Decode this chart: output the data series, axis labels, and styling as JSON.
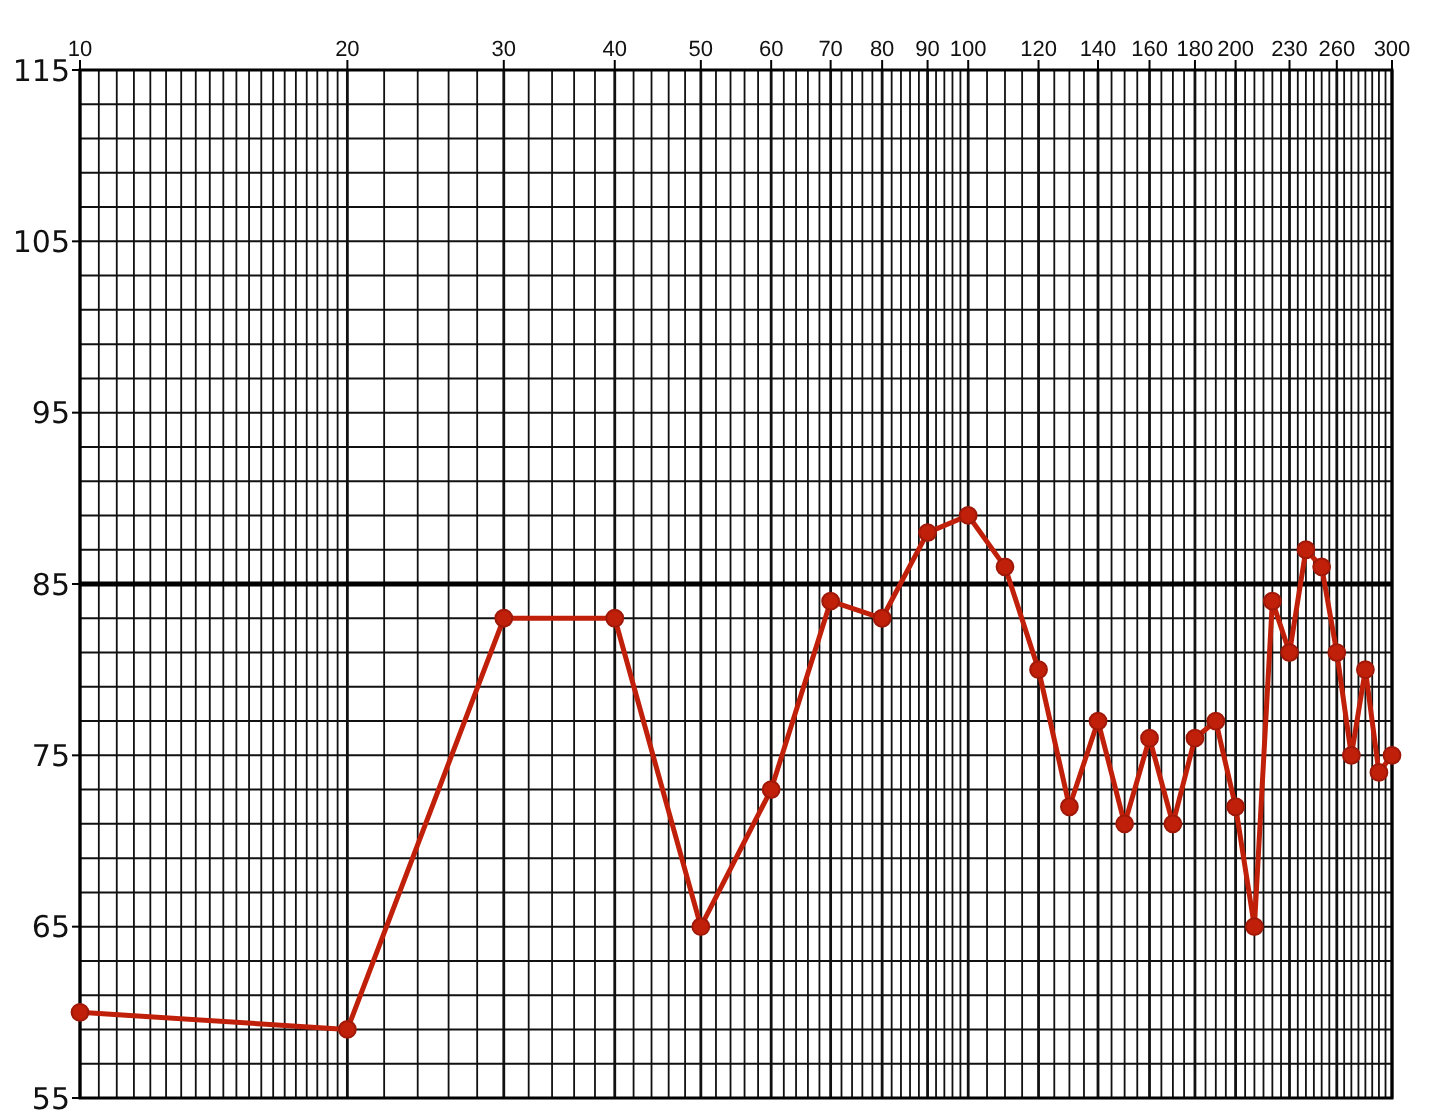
{
  "chart_data": {
    "type": "line",
    "log": "x",
    "grid": true,
    "marker": "circle",
    "line_style": "solid",
    "xlim": [
      10,
      300
    ],
    "xticks": [
      10,
      20,
      30,
      40,
      50,
      60,
      70,
      80,
      90,
      100,
      120,
      140,
      160,
      180,
      200,
      230,
      260,
      300
    ],
    "ylim": [
      55,
      115
    ],
    "yticks": [
      55,
      65,
      75,
      85,
      95,
      105,
      115
    ],
    "ref_lines": [
      {
        "axis": "y",
        "value": 85,
        "color": "#000000"
      }
    ],
    "series": [
      {
        "color": "#c0200a",
        "x": [
          10,
          20,
          30,
          40,
          50,
          60,
          70,
          80,
          90,
          100,
          110,
          120,
          130,
          140,
          150,
          160,
          170,
          180,
          190,
          200,
          210,
          220,
          230,
          240,
          250,
          260,
          270,
          280,
          290,
          300
        ],
        "values": [
          60,
          59,
          83,
          83,
          65,
          73,
          84,
          83,
          88,
          89,
          86,
          80,
          72,
          77,
          71,
          76,
          71,
          76,
          77,
          72,
          65,
          84,
          81,
          87,
          86,
          81,
          75,
          80,
          74,
          75
        ]
      }
    ]
  }
}
